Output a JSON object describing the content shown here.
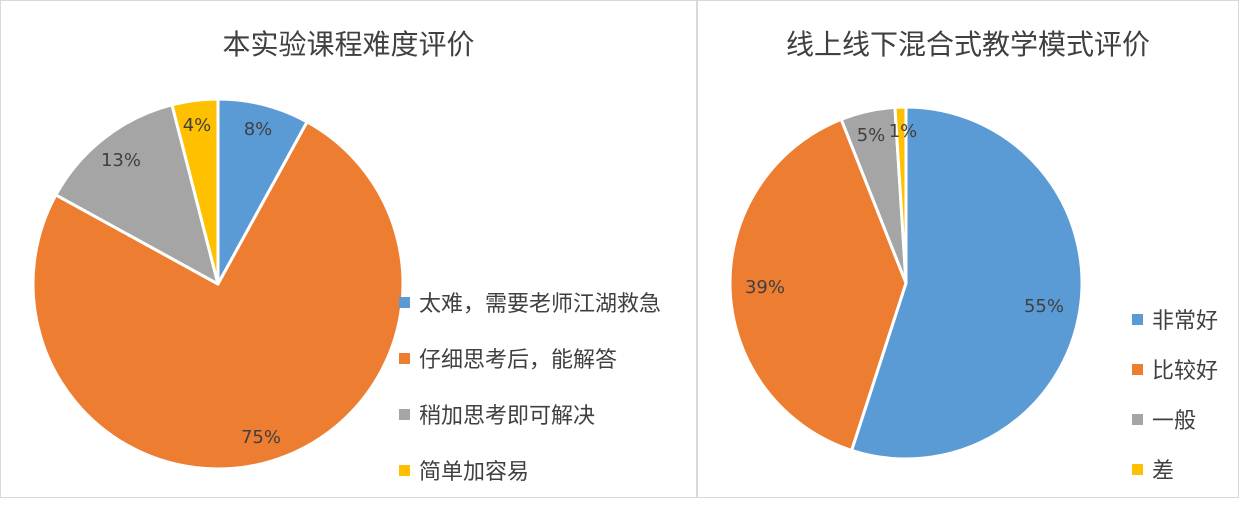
{
  "chart_data": [
    {
      "type": "pie",
      "title": "本实验课程难度评价",
      "categories": [
        "太难，需要老师江湖救急",
        "仔细思考后，能解答",
        "稍加思考即可解决",
        "简单加容易"
      ],
      "values": [
        8,
        75,
        13,
        4
      ],
      "data_labels": [
        "8%",
        "75%",
        "13%",
        "4%"
      ],
      "colors": [
        "#5B9BD5",
        "#ED7D31",
        "#A5A5A5",
        "#FFC000"
      ],
      "legend": "right"
    },
    {
      "type": "pie",
      "title": "线上线下混合式教学模式评价",
      "categories": [
        "非常好",
        "比较好",
        "一般",
        "差"
      ],
      "values": [
        55,
        39,
        5,
        1
      ],
      "data_labels": [
        "55%",
        "39%",
        "5%",
        "1%"
      ],
      "colors": [
        "#5B9BD5",
        "#ED7D31",
        "#A5A5A5",
        "#FFC000"
      ],
      "legend": "right"
    }
  ]
}
